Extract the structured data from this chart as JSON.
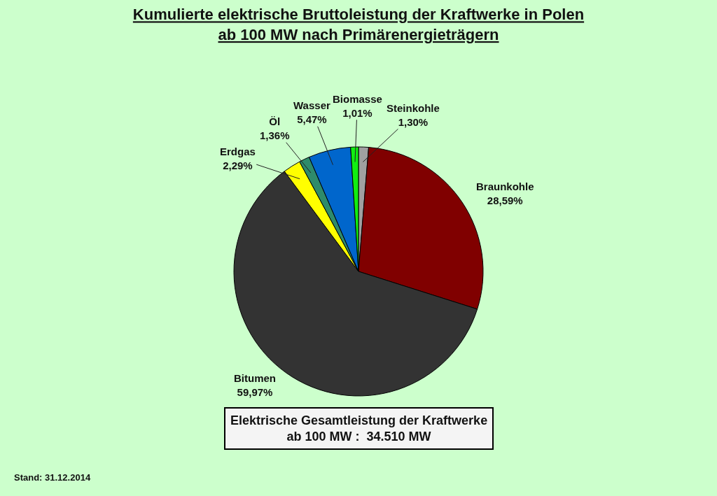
{
  "chart_data": {
    "type": "pie",
    "title": "Kumulierte elektrische Bruttoleistung der Kraftwerke in Polen\nab 100 MW nach Primärenergieträgern",
    "categories": [
      "Steinkohle",
      "Braunkohle",
      "Bitumen",
      "Erdgas",
      "Öl",
      "Wasser",
      "Biomasse"
    ],
    "values": [
      1.3,
      28.59,
      59.97,
      2.29,
      1.36,
      5.47,
      1.01
    ],
    "value_labels": [
      "1,30%",
      "28,59%",
      "59,97%",
      "2,29%",
      "1,36%",
      "5,47%",
      "1,01%"
    ],
    "colors": [
      "#a0a0a0",
      "#800000",
      "#333333",
      "#ffff00",
      "#2e8b6b",
      "#0066cc",
      "#11ee11"
    ],
    "annotations": [
      "Elektrische Gesamtleistung der Kraftwerke\nab 100 MW :  34.510 MW",
      "Stand: 31.12.2014"
    ]
  }
}
